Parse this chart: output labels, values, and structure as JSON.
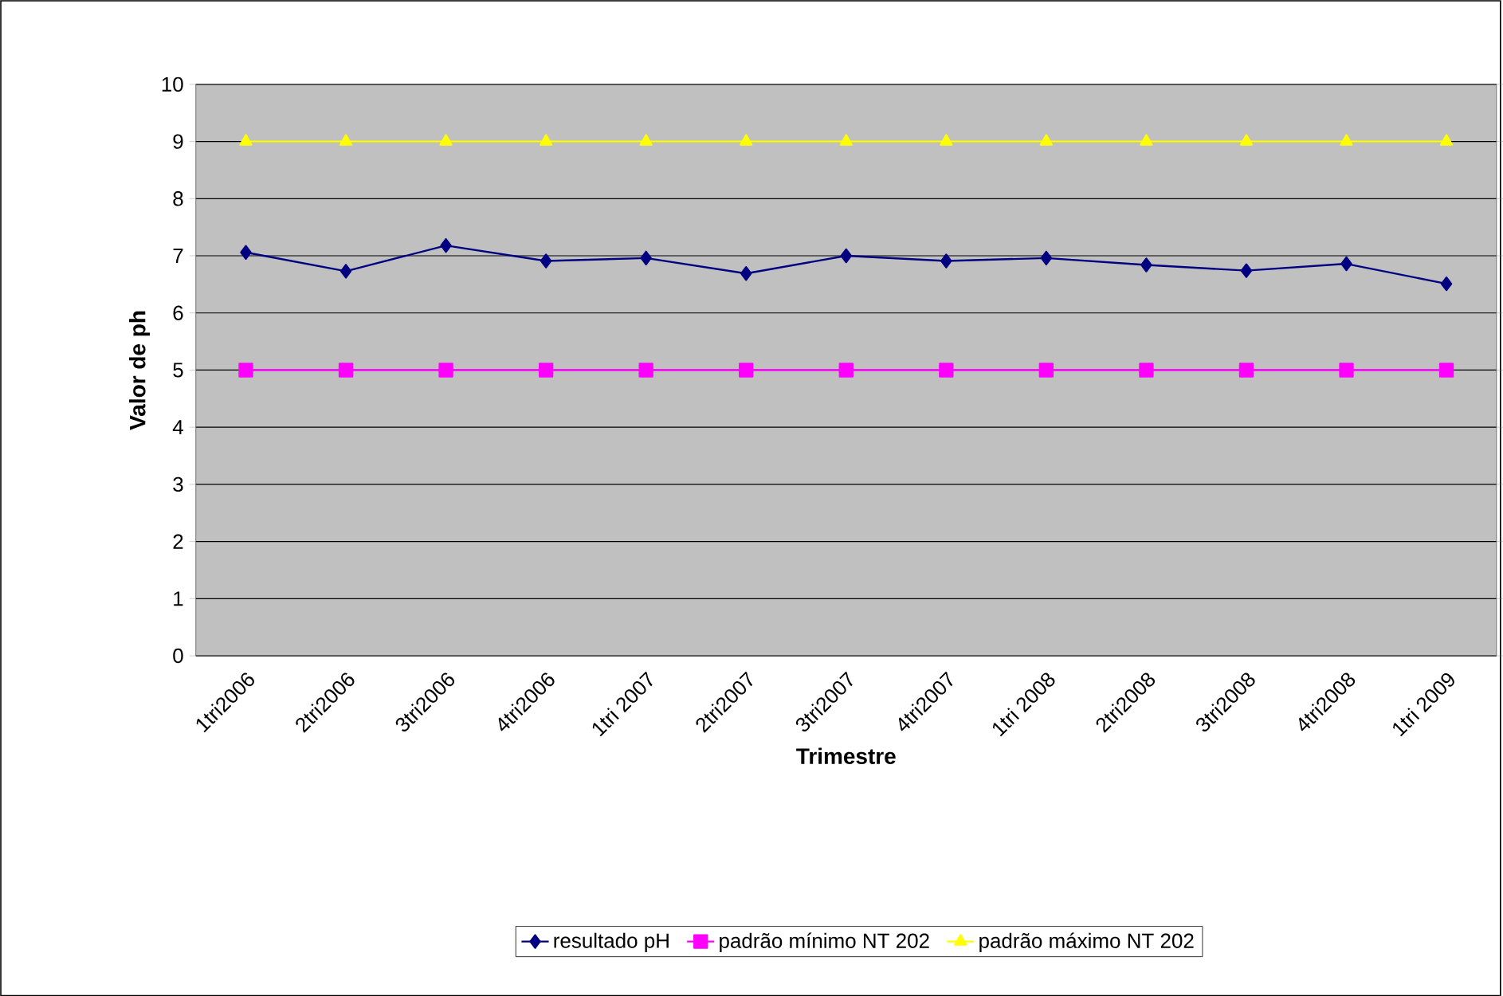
{
  "chart_data": {
    "type": "line",
    "xlabel": "Trimestre",
    "ylabel": "Valor de ph",
    "categories": [
      "1tri2006",
      "2tri2006",
      "3tri2006",
      "4tri2006",
      "1tri 2007",
      "2tri2007",
      "3tri2007",
      "4tri2007",
      "1tri 2008",
      "2tri2008",
      "3tri2008",
      "4tri2008",
      "1tri 2009"
    ],
    "series": [
      {
        "name": "resultado pH",
        "color": "#000080",
        "marker": "diamond",
        "values": [
          7.06,
          6.73,
          7.18,
          6.91,
          6.96,
          6.69,
          7.0,
          6.91,
          6.96,
          6.84,
          6.74,
          6.86,
          6.51
        ]
      },
      {
        "name": "padrão mínimo NT 202",
        "color": "#ff00ff",
        "marker": "square",
        "values": [
          5,
          5,
          5,
          5,
          5,
          5,
          5,
          5,
          5,
          5,
          5,
          5,
          5
        ]
      },
      {
        "name": "padrão máximo NT 202",
        "color": "#ffff00",
        "marker": "triangle",
        "values": [
          9,
          9,
          9,
          9,
          9,
          9,
          9,
          9,
          9,
          9,
          9,
          9,
          9
        ]
      }
    ],
    "ylim": [
      0,
      10
    ],
    "yticks": [
      0,
      1,
      2,
      3,
      4,
      5,
      6,
      7,
      8,
      9,
      10
    ],
    "grid": "y",
    "legend": "bottom",
    "line_style": "solid"
  }
}
